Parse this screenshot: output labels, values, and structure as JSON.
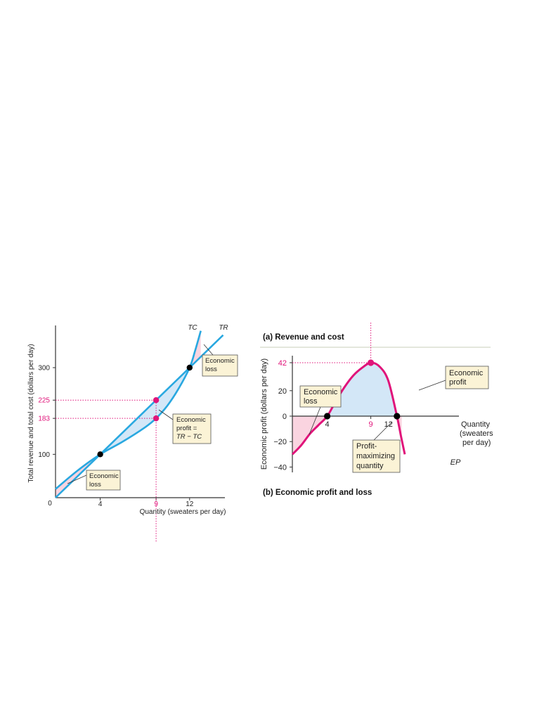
{
  "charts": {
    "panel_a": {
      "title": "(a) Revenue and cost",
      "ylabel": "Total revenue and total cost (dollars per day)",
      "xlabel": "Quantity (sweaters per day)",
      "origin_label": "0",
      "tr_label": "TR",
      "tc_label": "TC",
      "callout_loss_top": [
        "Economic",
        "loss"
      ],
      "callout_profit": [
        "Economic",
        "profit =",
        "TR − TC"
      ],
      "callout_loss_bottom": [
        "Economic",
        "loss"
      ]
    },
    "panel_b": {
      "title": "(b) Economic profit and loss",
      "ylabel": "Economic profit (dollars per day)",
      "xlabel_lines": [
        "Quantity",
        "(sweaters",
        "per day)"
      ],
      "ep_label": "EP",
      "callout_loss": [
        "Economic",
        "loss"
      ],
      "callout_profit": [
        "Economic",
        "profit"
      ],
      "callout_pmq": [
        "Profit-",
        "maximizing",
        "quantity"
      ]
    }
  },
  "colors": {
    "tr_tc_curve": "#29a8e0",
    "ep_curve": "#e0147a",
    "highlight": "#e0147a",
    "profit_fill": "#d3e7f7",
    "loss_fill": "#fad4e0",
    "callout_bg": "#fbf3d6",
    "axis": "#333333",
    "point": "#000000"
  },
  "chart_data": [
    {
      "type": "line",
      "title": "(a) Revenue and cost",
      "xlabel": "Quantity (sweaters per day)",
      "ylabel": "Total revenue and total cost (dollars per day)",
      "xlim": [
        0,
        15
      ],
      "ylim": [
        0,
        390
      ],
      "x_ticks": [
        4,
        9,
        12
      ],
      "y_ticks": [
        100,
        183,
        225,
        300
      ],
      "highlight_x_ticks": [
        9
      ],
      "highlight_y_ticks": [
        183,
        225
      ],
      "series": [
        {
          "name": "TR",
          "x": [
            0,
            4,
            9,
            12,
            15
          ],
          "y": [
            0,
            100,
            225,
            300,
            375
          ]
        },
        {
          "name": "TC",
          "x": [
            0,
            2,
            4,
            6,
            8,
            9,
            10,
            11,
            12,
            12.5,
            13
          ],
          "y": [
            20,
            63,
            100,
            129,
            162,
            183,
            212,
            251,
            300,
            340,
            385
          ]
        }
      ],
      "points": [
        {
          "x": 4,
          "y": 100,
          "color": "black"
        },
        {
          "x": 12,
          "y": 300,
          "color": "black"
        },
        {
          "x": 9,
          "y": 225,
          "color": "magenta"
        },
        {
          "x": 9,
          "y": 183,
          "color": "magenta"
        }
      ]
    },
    {
      "type": "line",
      "title": "(b) Economic profit and loss",
      "xlabel": "Quantity (sweaters per day)",
      "ylabel": "Economic profit (dollars per day)",
      "xlim": [
        0,
        15
      ],
      "ylim": [
        -45,
        45
      ],
      "x_ticks": [
        4,
        9,
        12
      ],
      "y_ticks": [
        -40,
        -20,
        0,
        20,
        42
      ],
      "highlight_x_ticks": [
        9
      ],
      "highlight_y_ticks": [
        42
      ],
      "series": [
        {
          "name": "EP",
          "x": [
            0,
            1,
            2,
            3,
            4,
            5,
            6,
            7,
            8,
            9,
            10,
            11,
            12,
            12.5,
            12.9
          ],
          "y": [
            -30,
            -23,
            -14,
            -7,
            0,
            12,
            23,
            32,
            38,
            42,
            39,
            28,
            0,
            -17,
            -30
          ]
        }
      ],
      "points": [
        {
          "x": 4,
          "y": 0,
          "color": "black"
        },
        {
          "x": 12,
          "y": 0,
          "color": "black"
        },
        {
          "x": 9,
          "y": 42,
          "color": "magenta"
        }
      ]
    }
  ]
}
